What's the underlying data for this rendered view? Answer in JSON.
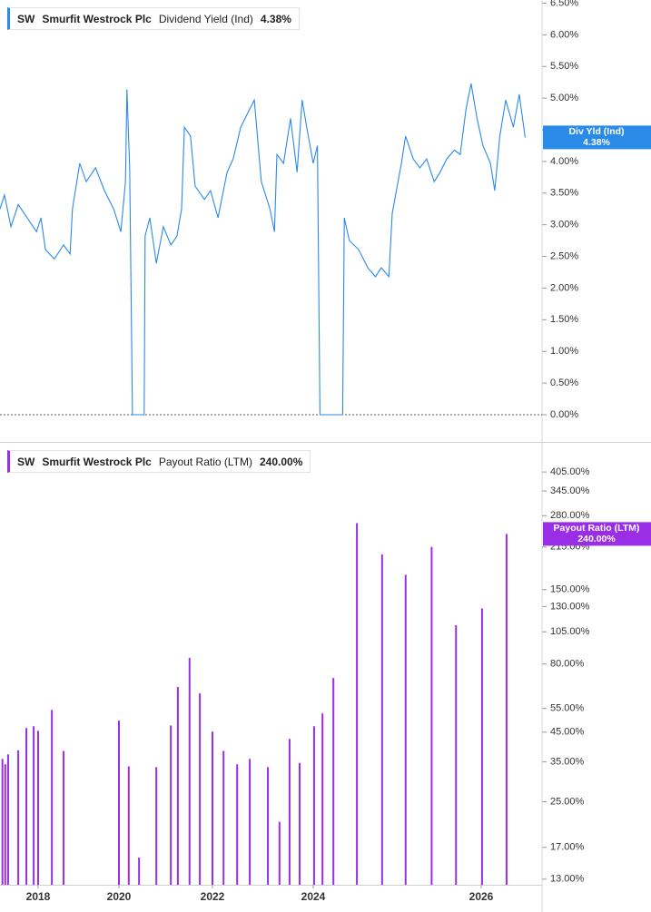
{
  "chart_data": [
    {
      "type": "line",
      "ticker": "SW",
      "company": "Smurfit Westrock Plc",
      "current_label": "4.38%",
      "badge_label": "Div Yld (Ind)",
      "x": [
        2017.06,
        2017.17,
        2017.33,
        2017.51,
        2017.73,
        2017.96,
        2018.07,
        2018.18,
        2018.4,
        2018.63,
        2018.79,
        2018.85,
        2019.03,
        2019.19,
        2019.42,
        2019.64,
        2019.87,
        2020.04,
        2020.14,
        2020.17,
        2020.23,
        2020.29,
        2020.54,
        2020.56,
        2020.66,
        2020.8,
        2020.95,
        2021.11,
        2021.24,
        2021.34,
        2021.4,
        2021.53,
        2021.63,
        2021.83,
        2021.96,
        2022.11,
        2022.29,
        2022.41,
        2022.56,
        2022.74,
        2022.83,
        2022.97,
        2023.14,
        2023.23,
        2023.28,
        2023.41,
        2023.55,
        2023.68,
        2023.78,
        2023.87,
        2024.0,
        2024.05,
        2024.08,
        2024.35,
        2024.37,
        2024.43,
        2024.54,
        2024.65,
        2024.74,
        2024.81,
        2024.9,
        2024.94,
        2025.01,
        2025.05,
        2025.1,
        2025.19,
        2025.27,
        2025.35,
        2025.44,
        2025.51,
        2025.59,
        2025.68,
        2025.75,
        2025.82,
        2025.88,
        2025.95,
        2026.02,
        2026.11,
        2026.16,
        2026.22,
        2026.29,
        2026.38,
        2026.45,
        2026.52
      ],
      "series": [
        {
          "name": "Dividend Yield (Ind)",
          "color": "#2a8ae8",
          "values": [
            3.25,
            3.47,
            2.97,
            3.32,
            3.11,
            2.89,
            3.11,
            2.61,
            2.46,
            2.68,
            2.54,
            3.25,
            3.97,
            3.68,
            3.9,
            3.54,
            3.25,
            2.89,
            3.68,
            5.14,
            3.9,
            0,
            0,
            2.82,
            3.11,
            2.39,
            2.97,
            2.68,
            2.82,
            3.25,
            4.54,
            4.4,
            3.61,
            3.4,
            3.54,
            3.11,
            3.83,
            4.04,
            4.54,
            4.83,
            4.97,
            3.68,
            3.25,
            2.89,
            4.11,
            3.97,
            4.68,
            3.83,
            4.97,
            4.54,
            3.97,
            4.25,
            0,
            0,
            3.11,
            2.75,
            2.61,
            2.32,
            2.18,
            2.32,
            2.18,
            3.18,
            3.68,
            3.97,
            4.4,
            4.04,
            3.9,
            4.04,
            3.68,
            3.83,
            4.04,
            4.18,
            4.11,
            4.83,
            5.23,
            4.68,
            4.25,
            3.97,
            3.54,
            4.4,
            4.97,
            4.54,
            5.06,
            4.38
          ]
        }
      ],
      "xlim": [
        2017.06,
        2026.72
      ],
      "ylim": [
        -0.43,
        6.55
      ],
      "zero_line": true,
      "yticks": [
        {
          "value": 6.5,
          "label": "6.50%"
        },
        {
          "value": 6,
          "label": "6.00%"
        },
        {
          "value": 5.5,
          "label": "5.50%"
        },
        {
          "value": 5,
          "label": "5.00%"
        },
        {
          "value": 4.5,
          "label": "4.50%"
        },
        {
          "value": 4,
          "label": "4.00%"
        },
        {
          "value": 3.5,
          "label": "3.50%"
        },
        {
          "value": 3,
          "label": "3.00%"
        },
        {
          "value": 2.5,
          "label": "2.50%"
        },
        {
          "value": 2,
          "label": "2.00%"
        },
        {
          "value": 1.5,
          "label": "1.50%"
        },
        {
          "value": 1,
          "label": "1.00%"
        },
        {
          "value": 0.5,
          "label": "0.50%"
        },
        {
          "value": 0,
          "label": "0.00%"
        }
      ]
    },
    {
      "type": "bar",
      "ticker": "SW",
      "company": "Smurfit Westrock Plc",
      "name": "Payout Ratio (LTM)",
      "current_label": "240.00%",
      "badge_label": "Payout Ratio (LTM)",
      "color": "#9a2ee6",
      "log_scale": true,
      "x": [
        2017.12,
        2017.19,
        2017.26,
        2017.51,
        2017.71,
        2017.89,
        2018.0,
        2018.34,
        2018.63,
        2020.0,
        2020.21,
        2020.43,
        2020.8,
        2021.11,
        2021.26,
        2021.51,
        2021.73,
        2022.0,
        2022.22,
        2022.49,
        2022.74,
        2023.1,
        2023.33,
        2023.53,
        2023.73,
        2024.01,
        2024.11,
        2024.24,
        2024.52,
        2024.82,
        2025.1,
        2025.41,
        2025.7,
        2026.01,
        2026.3
      ],
      "values": [
        35.9,
        34.3,
        37.3,
        38.6,
        46.6,
        47.3,
        45.5,
        54.3,
        38.4,
        49.6,
        33.7,
        15.6,
        33.5,
        47.6,
        65.9,
        84.3,
        62.4,
        45.2,
        38.4,
        34.3,
        35.9,
        33.5,
        21.1,
        42.5,
        34.7,
        47.3,
        52.7,
        71.1,
        263,
        202,
        170,
        215,
        111,
        128,
        240
      ],
      "xlim": [
        2017.06,
        2026.72
      ],
      "xticks": [
        2018,
        2020,
        2022,
        2024,
        2026
      ],
      "ylim": [
        12.4,
        518
      ],
      "yticks": [
        {
          "value": 405,
          "label": "405.00%"
        },
        {
          "value": 345,
          "label": "345.00%"
        },
        {
          "value": 280,
          "label": "280.00%"
        },
        {
          "value": 215,
          "label": "215.00%"
        },
        {
          "value": 150,
          "label": "150.00%"
        },
        {
          "value": 130,
          "label": "130.00%"
        },
        {
          "value": 105,
          "label": "105.00%"
        },
        {
          "value": 80,
          "label": "80.00%"
        },
        {
          "value": 55,
          "label": "55.00%"
        },
        {
          "value": 45,
          "label": "45.00%"
        },
        {
          "value": 35,
          "label": "35.00%"
        },
        {
          "value": 25,
          "label": "25.00%"
        },
        {
          "value": 17,
          "label": "17.00%"
        },
        {
          "value": 13,
          "label": "13.00%"
        }
      ]
    }
  ]
}
